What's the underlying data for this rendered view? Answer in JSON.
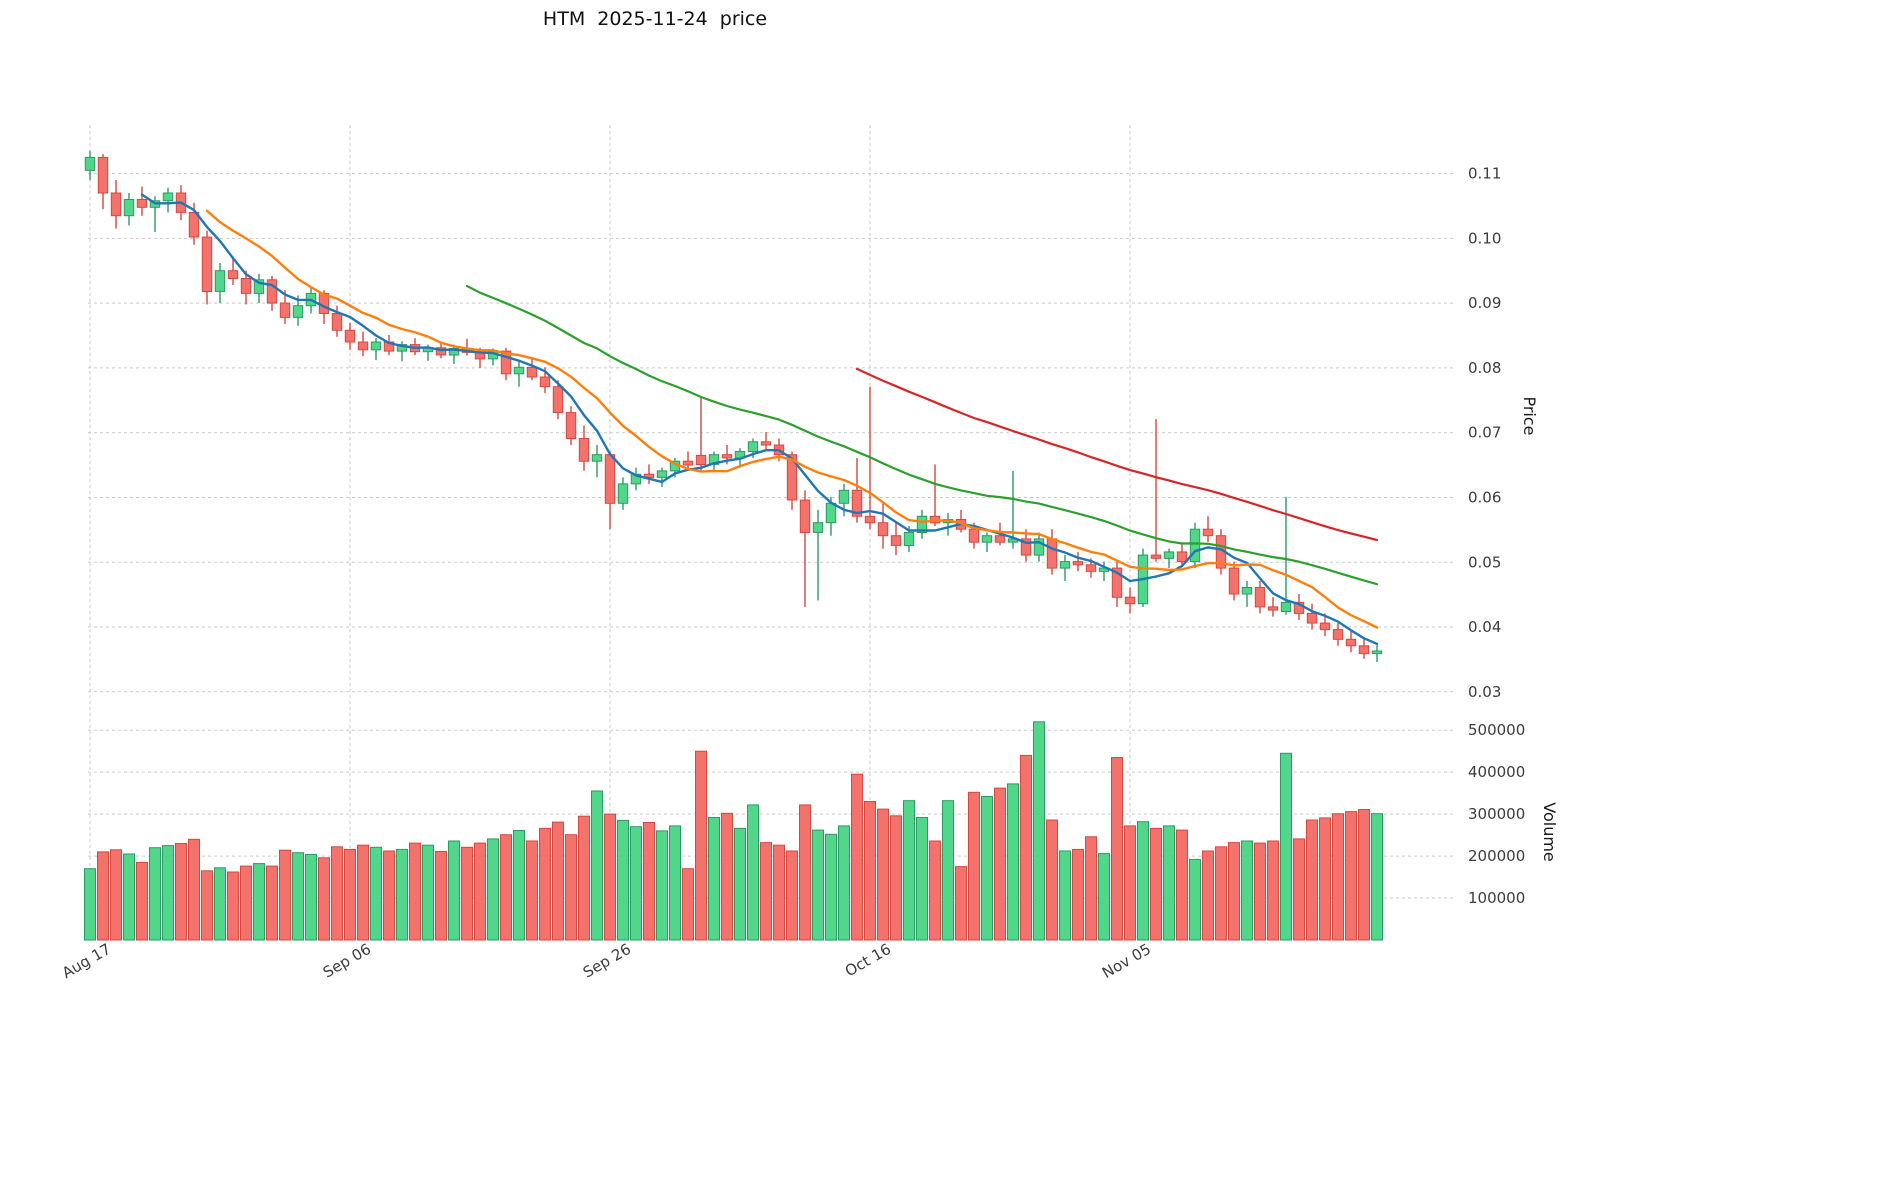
{
  "title": "HTM  2025-11-24  price",
  "axes": {
    "price_label": "Price",
    "volume_label": "Volume",
    "price_ticks": [
      0.03,
      0.04,
      0.05,
      0.06,
      0.07,
      0.08,
      0.09,
      0.1,
      0.11
    ],
    "volume_ticks": [
      100000,
      200000,
      300000,
      400000,
      500000
    ]
  },
  "style": {
    "up_color": "#52d689",
    "up_edge": "#2a9a66",
    "down_color": "#f3736c",
    "down_edge": "#d6473f",
    "grid_color": "#c9c9c9",
    "tick_color": "#3c3c3c"
  },
  "chart_data": {
    "type": "candlestick_with_volume",
    "symbol": "HTM",
    "as_of_date": "2025-11-24",
    "title": "HTM  2025-11-24  price",
    "price_ylim": [
      0.0275,
      0.1175
    ],
    "volume_ylim": [
      0,
      560000
    ],
    "x_labels": [
      {
        "index": 0,
        "label": "Aug 17"
      },
      {
        "index": 20,
        "label": "Sep 06"
      },
      {
        "index": 40,
        "label": "Sep 26"
      },
      {
        "index": 60,
        "label": "Oct 16"
      },
      {
        "index": 80,
        "label": "Nov 05"
      }
    ],
    "moving_averages": [
      {
        "name": "MA5",
        "window": 5,
        "color": "#1f77b4",
        "width": 2.4
      },
      {
        "name": "MA10",
        "window": 10,
        "color": "#ff7f0e",
        "width": 2.4
      },
      {
        "name": "MA30",
        "window": 30,
        "color": "#2ca02c",
        "width": 2.2
      },
      {
        "name": "MA60",
        "window": 60,
        "color": "#d62728",
        "width": 2.2
      }
    ],
    "candles_format": [
      "open",
      "high",
      "low",
      "close",
      "volume"
    ],
    "candles": [
      [
        0.1105,
        0.1135,
        0.109,
        0.1125,
        170000
      ],
      [
        0.1125,
        0.113,
        0.1045,
        0.107,
        210000
      ],
      [
        0.107,
        0.109,
        0.1015,
        0.1035,
        215000
      ],
      [
        0.1035,
        0.107,
        0.102,
        0.106,
        205000
      ],
      [
        0.106,
        0.108,
        0.1035,
        0.1048,
        185000
      ],
      [
        0.1048,
        0.1065,
        0.101,
        0.1058,
        220000
      ],
      [
        0.1058,
        0.1078,
        0.104,
        0.107,
        225000
      ],
      [
        0.107,
        0.1082,
        0.1028,
        0.104,
        230000
      ],
      [
        0.104,
        0.1055,
        0.099,
        0.1002,
        240000
      ],
      [
        0.1002,
        0.1012,
        0.0898,
        0.0918,
        165000
      ],
      [
        0.0918,
        0.0962,
        0.09,
        0.095,
        172000
      ],
      [
        0.095,
        0.0972,
        0.0928,
        0.0938,
        162000
      ],
      [
        0.0938,
        0.095,
        0.0898,
        0.0915,
        176000
      ],
      [
        0.0915,
        0.0945,
        0.09,
        0.0936,
        182000
      ],
      [
        0.0936,
        0.0942,
        0.0888,
        0.09,
        176000
      ],
      [
        0.09,
        0.092,
        0.0868,
        0.0878,
        214000
      ],
      [
        0.0878,
        0.0912,
        0.0865,
        0.0896,
        208000
      ],
      [
        0.0896,
        0.0926,
        0.0884,
        0.0915,
        204000
      ],
      [
        0.0915,
        0.092,
        0.0868,
        0.0884,
        196000
      ],
      [
        0.0884,
        0.0896,
        0.0848,
        0.0858,
        222000
      ],
      [
        0.0858,
        0.087,
        0.0828,
        0.084,
        216000
      ],
      [
        0.084,
        0.0856,
        0.0818,
        0.0828,
        226000
      ],
      [
        0.0828,
        0.0846,
        0.0812,
        0.084,
        221000
      ],
      [
        0.084,
        0.0851,
        0.082,
        0.0826,
        212000
      ],
      [
        0.0826,
        0.0841,
        0.081,
        0.0836,
        216000
      ],
      [
        0.0836,
        0.0846,
        0.082,
        0.0825,
        231000
      ],
      [
        0.0825,
        0.0836,
        0.0811,
        0.0831,
        226000
      ],
      [
        0.0831,
        0.0841,
        0.0815,
        0.082,
        211000
      ],
      [
        0.082,
        0.0836,
        0.0806,
        0.083,
        236000
      ],
      [
        0.083,
        0.0845,
        0.0819,
        0.0824,
        221000
      ],
      [
        0.0824,
        0.0831,
        0.08,
        0.0814,
        231000
      ],
      [
        0.0814,
        0.083,
        0.0804,
        0.0826,
        241000
      ],
      [
        0.0826,
        0.0831,
        0.0781,
        0.0791,
        251000
      ],
      [
        0.0791,
        0.0811,
        0.0771,
        0.0801,
        261000
      ],
      [
        0.0801,
        0.0816,
        0.0781,
        0.0786,
        236000
      ],
      [
        0.0786,
        0.0801,
        0.0761,
        0.0771,
        266000
      ],
      [
        0.0771,
        0.0781,
        0.0721,
        0.0731,
        281000
      ],
      [
        0.0731,
        0.0741,
        0.0681,
        0.0691,
        251000
      ],
      [
        0.0691,
        0.0711,
        0.0641,
        0.0656,
        295000
      ],
      [
        0.0656,
        0.0681,
        0.0631,
        0.0666,
        355000
      ],
      [
        0.0666,
        0.0671,
        0.0551,
        0.0591,
        300000
      ],
      [
        0.0591,
        0.0631,
        0.0581,
        0.0621,
        285000
      ],
      [
        0.0621,
        0.0646,
        0.0611,
        0.0636,
        270000
      ],
      [
        0.0636,
        0.0651,
        0.0621,
        0.0631,
        280000
      ],
      [
        0.0631,
        0.0646,
        0.0616,
        0.0641,
        260000
      ],
      [
        0.0641,
        0.0661,
        0.0631,
        0.0656,
        272000
      ],
      [
        0.0656,
        0.0671,
        0.0641,
        0.065,
        170000
      ],
      [
        0.0665,
        0.0755,
        0.064,
        0.0651,
        450000
      ],
      [
        0.0651,
        0.0671,
        0.0641,
        0.0666,
        292000
      ],
      [
        0.0666,
        0.0681,
        0.0651,
        0.0661,
        302000
      ],
      [
        0.0661,
        0.0676,
        0.0646,
        0.0671,
        266000
      ],
      [
        0.0671,
        0.0691,
        0.0661,
        0.0686,
        322000
      ],
      [
        0.0686,
        0.0701,
        0.0671,
        0.0681,
        232000
      ],
      [
        0.0681,
        0.0691,
        0.0656,
        0.0666,
        226000
      ],
      [
        0.0666,
        0.0671,
        0.0581,
        0.0596,
        212000
      ],
      [
        0.0596,
        0.0611,
        0.0431,
        0.0546,
        322000
      ],
      [
        0.0546,
        0.0581,
        0.0441,
        0.0561,
        262000
      ],
      [
        0.0561,
        0.0601,
        0.0541,
        0.0591,
        252000
      ],
      [
        0.0591,
        0.0621,
        0.0571,
        0.0611,
        272000
      ],
      [
        0.0611,
        0.0661,
        0.0561,
        0.0571,
        395000
      ],
      [
        0.0571,
        0.0771,
        0.0551,
        0.0561,
        330000
      ],
      [
        0.0561,
        0.0591,
        0.0521,
        0.0541,
        312000
      ],
      [
        0.0541,
        0.0561,
        0.0511,
        0.0526,
        296000
      ],
      [
        0.0526,
        0.0556,
        0.0516,
        0.0546,
        332000
      ],
      [
        0.0546,
        0.0581,
        0.0536,
        0.0571,
        292000
      ],
      [
        0.0571,
        0.0651,
        0.0556,
        0.0561,
        236000
      ],
      [
        0.0561,
        0.0576,
        0.0541,
        0.0566,
        332000
      ],
      [
        0.0566,
        0.0581,
        0.0546,
        0.0551,
        175000
      ],
      [
        0.0551,
        0.0561,
        0.0521,
        0.0531,
        352000
      ],
      [
        0.0531,
        0.0546,
        0.0516,
        0.0541,
        342000
      ],
      [
        0.0541,
        0.0561,
        0.0526,
        0.0531,
        362000
      ],
      [
        0.0531,
        0.0641,
        0.0521,
        0.0536,
        372000
      ],
      [
        0.0536,
        0.0551,
        0.0501,
        0.0511,
        440000
      ],
      [
        0.0511,
        0.0546,
        0.0501,
        0.0536,
        520000
      ],
      [
        0.0536,
        0.0551,
        0.0481,
        0.0491,
        286000
      ],
      [
        0.0491,
        0.0511,
        0.0471,
        0.0501,
        212000
      ],
      [
        0.0501,
        0.0516,
        0.0486,
        0.0496,
        216000
      ],
      [
        0.0496,
        0.0506,
        0.0476,
        0.0486,
        246000
      ],
      [
        0.0486,
        0.0501,
        0.0471,
        0.0491,
        206000
      ],
      [
        0.0491,
        0.0501,
        0.0431,
        0.0446,
        435000
      ],
      [
        0.0446,
        0.0461,
        0.0421,
        0.0436,
        272000
      ],
      [
        0.0436,
        0.0521,
        0.0431,
        0.0511,
        282000
      ],
      [
        0.0511,
        0.0721,
        0.0501,
        0.0506,
        266000
      ],
      [
        0.0506,
        0.0521,
        0.0491,
        0.0516,
        272000
      ],
      [
        0.0516,
        0.0531,
        0.0496,
        0.0501,
        262000
      ],
      [
        0.0501,
        0.0561,
        0.0491,
        0.0551,
        192000
      ],
      [
        0.0551,
        0.0571,
        0.0531,
        0.0541,
        212000
      ],
      [
        0.0541,
        0.0551,
        0.0481,
        0.0491,
        222000
      ],
      [
        0.0491,
        0.0501,
        0.0441,
        0.0451,
        232000
      ],
      [
        0.0451,
        0.0471,
        0.0431,
        0.0461,
        236000
      ],
      [
        0.0461,
        0.0471,
        0.0421,
        0.0431,
        231000
      ],
      [
        0.0431,
        0.0446,
        0.0416,
        0.0426,
        236000
      ],
      [
        0.0424,
        0.0601,
        0.0419,
        0.0438,
        445000
      ],
      [
        0.0438,
        0.0451,
        0.0411,
        0.0421,
        241000
      ],
      [
        0.0421,
        0.0436,
        0.0396,
        0.0406,
        286000
      ],
      [
        0.0406,
        0.0421,
        0.0386,
        0.0396,
        291000
      ],
      [
        0.0396,
        0.0406,
        0.0371,
        0.0381,
        301000
      ],
      [
        0.0381,
        0.0396,
        0.0361,
        0.0371,
        306000
      ],
      [
        0.0371,
        0.0381,
        0.0351,
        0.0359,
        311000
      ],
      [
        0.0359,
        0.0372,
        0.0346,
        0.0363,
        301000
      ]
    ]
  }
}
